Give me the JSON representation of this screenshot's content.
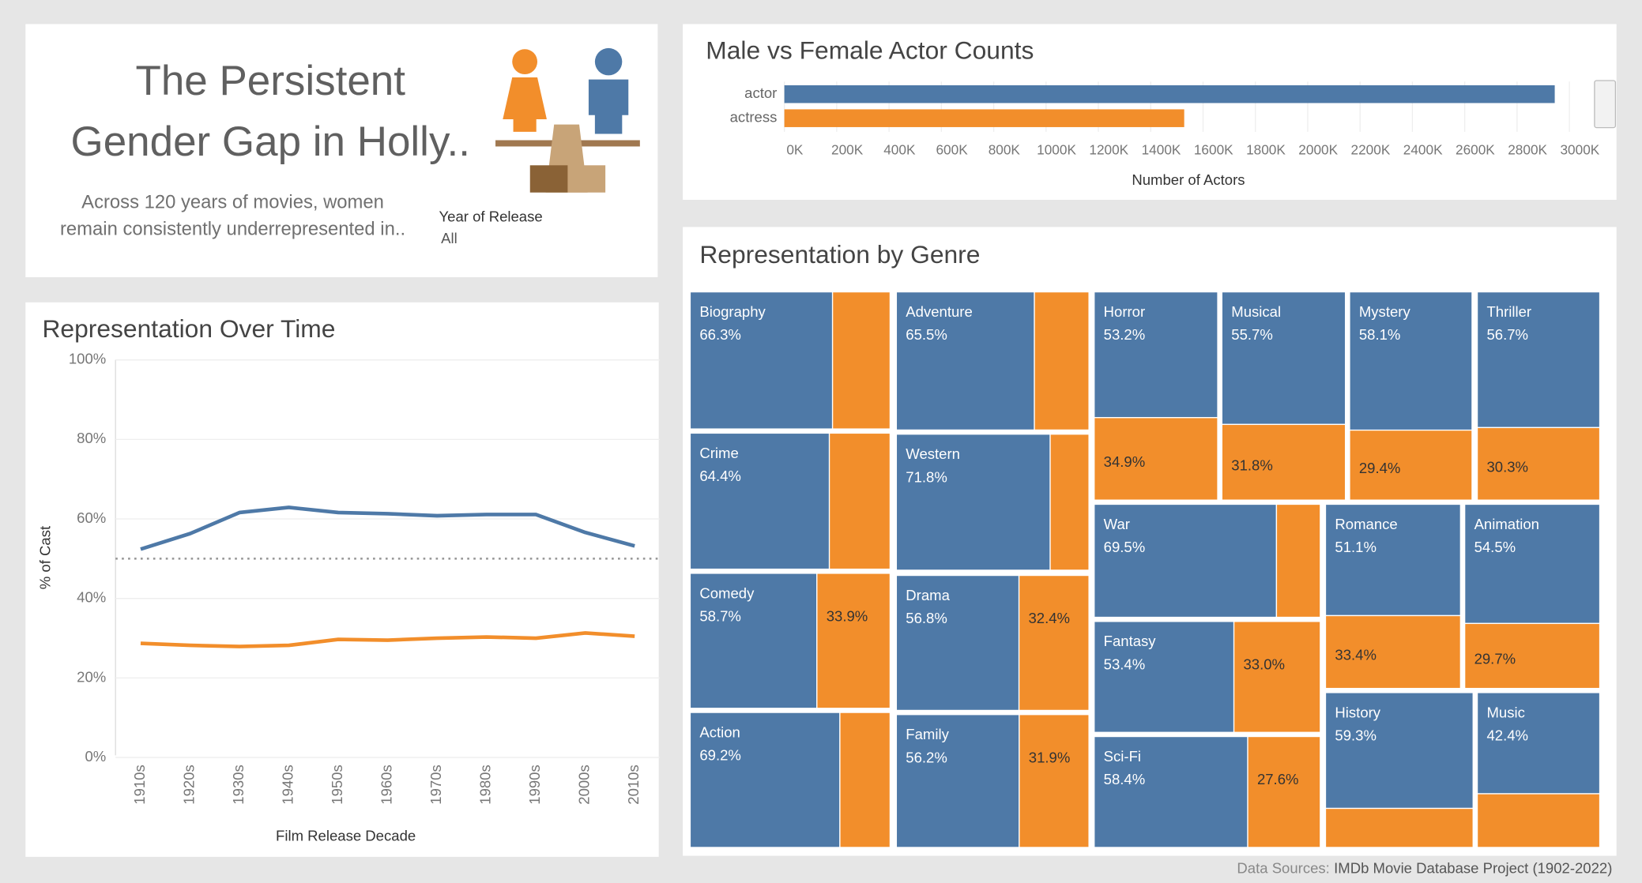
{
  "header": {
    "title_lines": [
      "The Persistent",
      "Gender Gap in Holly.."
    ],
    "subtitle_lines": [
      "Across 120 years of movies, women",
      "remain consistently underrepresented in.."
    ],
    "filter_label": "Year of Release",
    "filter_value": "All"
  },
  "chart_data": [
    {
      "type": "hbar",
      "title": "Male vs Female Actor Counts",
      "xlabel": "Number of Actors",
      "categories": [
        "actor",
        "actress"
      ],
      "values": [
        2944000,
        1528000
      ],
      "colors": [
        "#4e79a7",
        "#f28e2b"
      ],
      "xlim": [
        0,
        3000000
      ],
      "xticks": [
        {
          "value": 0,
          "label": "0K"
        },
        {
          "value": 200000,
          "label": "200K"
        },
        {
          "value": 400000,
          "label": "400K"
        },
        {
          "value": 600000,
          "label": "600K"
        },
        {
          "value": 800000,
          "label": "800K"
        },
        {
          "value": 1000000,
          "label": "1000K"
        },
        {
          "value": 1200000,
          "label": "1200K"
        },
        {
          "value": 1400000,
          "label": "1400K"
        },
        {
          "value": 1600000,
          "label": "1600K"
        },
        {
          "value": 1800000,
          "label": "1800K"
        },
        {
          "value": 2000000,
          "label": "2000K"
        },
        {
          "value": 2200000,
          "label": "2200K"
        },
        {
          "value": 2400000,
          "label": "2400K"
        },
        {
          "value": 2600000,
          "label": "2600K"
        },
        {
          "value": 2800000,
          "label": "2800K"
        },
        {
          "value": 3000000,
          "label": "3000K"
        }
      ],
      "grid": true
    },
    {
      "type": "line",
      "title": "Representation Over Time",
      "xlabel": "Film Release Decade",
      "ylabel": "% of Cast",
      "categories": [
        "1910s",
        "1920s",
        "1930s",
        "1940s",
        "1950s",
        "1960s",
        "1970s",
        "1980s",
        "1990s",
        "2000s",
        "2010s"
      ],
      "series": [
        {
          "color": "#4e79a7",
          "values": [
            52.4,
            56.3,
            61.6,
            62.9,
            61.6,
            61.3,
            60.8,
            61.1,
            61.1,
            56.6,
            53.2
          ]
        },
        {
          "color": "#f28e2b",
          "values": [
            28.7,
            28.2,
            27.9,
            28.2,
            29.7,
            29.5,
            30.0,
            30.3,
            30.0,
            31.3,
            30.5
          ]
        }
      ],
      "reference_line": 50,
      "ylim": [
        0,
        100
      ],
      "yticks": [
        {
          "value": 0,
          "label": "0%"
        },
        {
          "value": 20,
          "label": "20%"
        },
        {
          "value": 40,
          "label": "40%"
        },
        {
          "value": 60,
          "label": "60%"
        },
        {
          "value": 80,
          "label": "80%"
        },
        {
          "value": 100,
          "label": "100%"
        }
      ],
      "grid": true
    },
    {
      "type": "treemap",
      "title": "Representation by Genre",
      "categories": [
        "Biography",
        "Crime",
        "Comedy",
        "Action",
        "Adventure",
        "Western",
        "Drama",
        "Family",
        "Horror",
        "Musical",
        "Mystery",
        "Thriller",
        "War",
        "Fantasy",
        "Sci-Fi",
        "Romance",
        "Animation",
        "History",
        "Music"
      ],
      "series": [
        {
          "color": "#4e79a7",
          "values": [
            66.3,
            64.4,
            58.7,
            69.2,
            65.5,
            71.8,
            56.8,
            56.2,
            53.2,
            55.7,
            58.1,
            56.7,
            69.5,
            53.4,
            58.4,
            51.1,
            54.5,
            59.3,
            42.4
          ],
          "value_labels": [
            "66.3%",
            "64.4%",
            "58.7%",
            "69.2%",
            "65.5%",
            "71.8%",
            "56.8%",
            "56.2%",
            "53.2%",
            "55.7%",
            "58.1%",
            "56.7%",
            "69.5%",
            "53.4%",
            "58.4%",
            "51.1%",
            "54.5%",
            "59.3%",
            "42.4%"
          ]
        },
        {
          "color": "#f28e2b",
          "values": [
            26.8,
            28.1,
            33.9,
            23.2,
            25.9,
            18.1,
            32.4,
            31.9,
            34.9,
            31.8,
            29.4,
            30.3,
            16.7,
            33.0,
            27.6,
            33.4,
            29.7,
            20.0,
            22.5
          ],
          "value_labels": [
            null,
            null,
            "33.9%",
            null,
            null,
            null,
            "32.4%",
            "31.9%",
            "34.9%",
            "31.8%",
            "29.4%",
            "30.3%",
            null,
            "33.0%",
            "27.6%",
            "33.4%",
            "29.7%",
            null,
            null
          ]
        }
      ]
    }
  ],
  "footer": {
    "label": "Data Sources:",
    "source": "IMDb Movie Database Project (1902-2022)"
  }
}
